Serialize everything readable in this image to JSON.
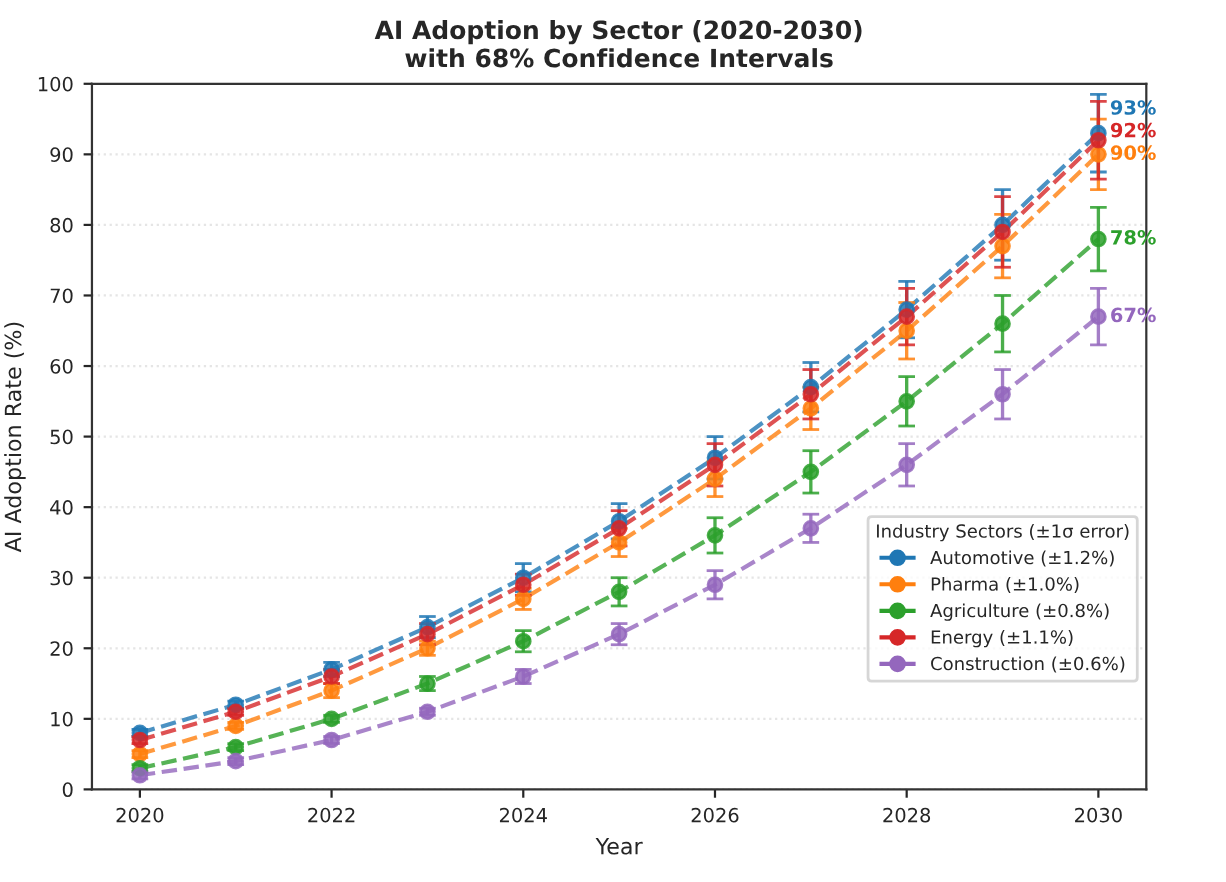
{
  "chart_data": {
    "type": "line",
    "title": "AI Adoption by Sector (2020-2030)\nwith 68% Confidence Intervals",
    "xlabel": "Year",
    "ylabel": "AI Adoption Rate (%)",
    "legend_title": "Industry Sectors (±1σ error)",
    "x": [
      2020,
      2021,
      2022,
      2023,
      2024,
      2025,
      2026,
      2027,
      2028,
      2029,
      2030
    ],
    "series": [
      {
        "name": "Automotive (±1.2%)",
        "color": "#1f77b4",
        "values": [
          8,
          12,
          17,
          23,
          30,
          38,
          47,
          57,
          68,
          80,
          93
        ],
        "errors": [
          0.5,
          0.5,
          1,
          1.5,
          2,
          2.5,
          3,
          3.5,
          4,
          5,
          5.5
        ],
        "value_labels": [
          null,
          null,
          null,
          null,
          null,
          null,
          null,
          null,
          null,
          null,
          "93%"
        ]
      },
      {
        "name": "Pharma (±1.0%)",
        "color": "#ff7f0e",
        "values": [
          5,
          9,
          14,
          20,
          27,
          35,
          44,
          54,
          65,
          77,
          90
        ],
        "errors": [
          0.5,
          0.5,
          1,
          1,
          1.5,
          2,
          2.5,
          3,
          4,
          4.5,
          5
        ],
        "value_labels": [
          null,
          null,
          null,
          null,
          null,
          null,
          null,
          null,
          null,
          null,
          "90%"
        ]
      },
      {
        "name": "Agriculture (±0.8%)",
        "color": "#2ca02c",
        "values": [
          3,
          6,
          10,
          15,
          21,
          28,
          36,
          45,
          55,
          66,
          78
        ],
        "errors": [
          0.5,
          0.5,
          0.5,
          1,
          1.5,
          2,
          2.5,
          3,
          3.5,
          4,
          4.5
        ],
        "value_labels": [
          null,
          null,
          null,
          null,
          null,
          null,
          null,
          null,
          null,
          null,
          "78%"
        ]
      },
      {
        "name": "Energy (±1.1%)",
        "color": "#d62728",
        "values": [
          7,
          11,
          16,
          22,
          29,
          37,
          46,
          56,
          67,
          79,
          92
        ],
        "errors": [
          0.5,
          0.5,
          1,
          1.5,
          1.5,
          2.5,
          3,
          3.5,
          4,
          5,
          5.5
        ],
        "value_labels": [
          null,
          null,
          null,
          null,
          null,
          null,
          null,
          null,
          null,
          null,
          "92%"
        ]
      },
      {
        "name": "Construction (±0.6%)",
        "color": "#9467bd",
        "values": [
          2,
          4,
          7,
          11,
          16,
          22,
          29,
          37,
          46,
          56,
          67
        ],
        "errors": [
          0.5,
          0.5,
          0.5,
          0.5,
          1,
          1.5,
          2,
          2,
          3,
          3.5,
          4
        ],
        "value_labels": [
          null,
          null,
          null,
          null,
          null,
          null,
          null,
          null,
          null,
          null,
          "67%"
        ]
      }
    ],
    "xlim": [
      2019.5,
      2030.5
    ],
    "xticks": [
      2020,
      2022,
      2024,
      2026,
      2028,
      2030
    ],
    "ylim": [
      0,
      100
    ],
    "yticks": [
      0,
      10,
      20,
      30,
      40,
      50,
      60,
      70,
      80,
      90,
      100
    ],
    "grid": "y",
    "legend": "right",
    "marker": "circle",
    "line_style": "dashed"
  }
}
